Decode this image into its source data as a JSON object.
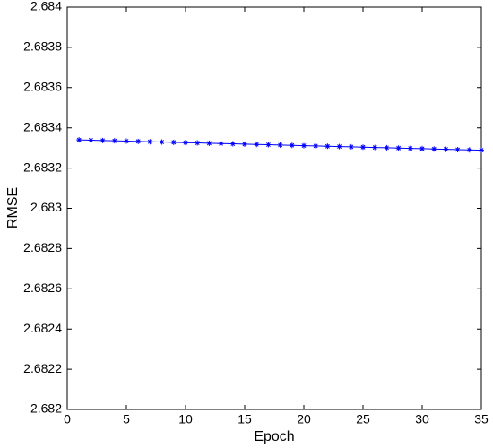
{
  "chart_data": {
    "type": "line",
    "x_label": "Epoch",
    "y_label": "RMSE",
    "x": [
      1,
      2,
      3,
      4,
      5,
      6,
      7,
      8,
      9,
      10,
      11,
      12,
      13,
      14,
      15,
      16,
      17,
      18,
      19,
      20,
      21,
      22,
      23,
      24,
      25,
      26,
      27,
      28,
      29,
      30,
      31,
      32,
      33,
      34,
      35
    ],
    "series": [
      {
        "color": "#0000ff",
        "marker": "star",
        "values": [
          2.68334,
          2.6833385,
          2.683337,
          2.6833355,
          2.683334,
          2.6833325,
          2.683331,
          2.6833295,
          2.683328,
          2.6833265,
          2.683325,
          2.6833235,
          2.683322,
          2.6833205,
          2.683319,
          2.6833175,
          2.683316,
          2.6833145,
          2.683313,
          2.6833115,
          2.68331,
          2.6833085,
          2.683307,
          2.6833055,
          2.683304,
          2.6833025,
          2.683301,
          2.6832995,
          2.683298,
          2.6832965,
          2.683295,
          2.6832935,
          2.683292,
          2.6832905,
          2.683289
        ]
      }
    ],
    "xlim": [
      0,
      35
    ],
    "xticks": [
      0,
      5,
      10,
      15,
      20,
      25,
      30,
      35
    ],
    "ylim": [
      2.682,
      2.684
    ],
    "yticks": [
      2.682,
      2.6822,
      2.6824,
      2.6826,
      2.6828,
      2.683,
      2.6832,
      2.6834,
      2.6836,
      2.6838,
      2.684
    ],
    "grid": false
  }
}
